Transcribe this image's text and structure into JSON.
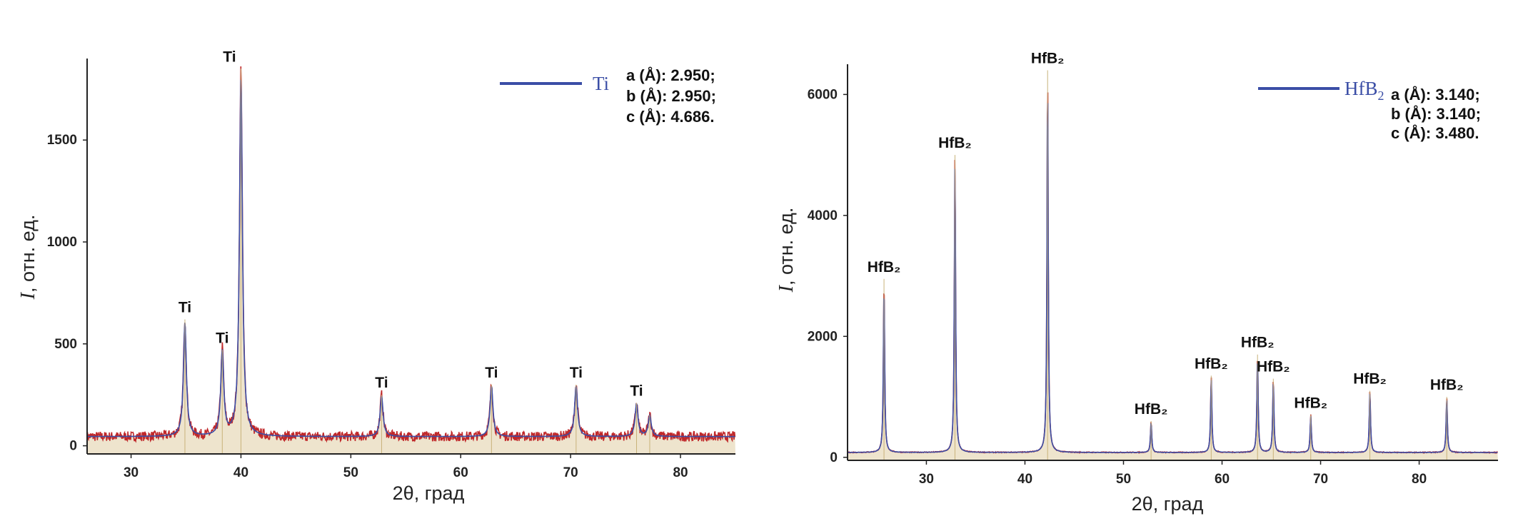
{
  "chart_data": [
    {
      "type": "line",
      "xlabel": "2θ, град",
      "ylabel": "I, отн. ед.",
      "ylabel_italic": "I",
      "ylabel_rest": ", отн. ед.",
      "xlim": [
        26,
        85
      ],
      "ylim": [
        -40,
        1900
      ],
      "xticks": [
        30,
        40,
        50,
        60,
        70,
        80
      ],
      "yticks": [
        0,
        500,
        1000,
        1500
      ],
      "background": 45,
      "legend": {
        "name": "Ti",
        "color": "#3b4ea6",
        "position": "top-right"
      },
      "lattice": [
        "a (Å): 2.950;",
        "b (Å): 2.950;",
        "c (Å): 4.686."
      ],
      "series": [
        {
          "name": "Ti",
          "color": "#3b4ea6"
        }
      ],
      "peaks": [
        {
          "x": 34.9,
          "y": 620,
          "label": "Ti"
        },
        {
          "x": 38.3,
          "y": 470,
          "label": "Ti"
        },
        {
          "x": 40.0,
          "y": 1850,
          "label": "Ti"
        },
        {
          "x": 52.8,
          "y": 250,
          "label": "Ti"
        },
        {
          "x": 62.8,
          "y": 300,
          "label": "Ti"
        },
        {
          "x": 70.5,
          "y": 300,
          "label": "Ti"
        },
        {
          "x": 76.0,
          "y": 210,
          "label": "Ti"
        },
        {
          "x": 77.2,
          "y": 150,
          "label": ""
        }
      ]
    },
    {
      "type": "line",
      "xlabel": "2θ, град",
      "ylabel": "I, отн. ед.",
      "ylabel_italic": "I",
      "ylabel_rest": ", отн. ед.",
      "xlim": [
        22,
        88
      ],
      "ylim": [
        -50,
        6500
      ],
      "xticks": [
        30,
        40,
        50,
        60,
        70,
        80
      ],
      "yticks": [
        0,
        2000,
        4000,
        6000
      ],
      "background": 80,
      "legend": {
        "name": "HfB",
        "subscript": "2",
        "color": "#3b4ea6",
        "position": "top-right"
      },
      "lattice": [
        "a (Å): 3.140;",
        "b (Å): 3.140;",
        "c (Å): 3.480."
      ],
      "series": [
        {
          "name": "HfB2",
          "color": "#3b4ea6"
        }
      ],
      "peaks": [
        {
          "x": 25.7,
          "y": 2950,
          "label": "HfB₂"
        },
        {
          "x": 32.9,
          "y": 5000,
          "label": "HfB₂"
        },
        {
          "x": 42.3,
          "y": 6400,
          "label": "HfB₂"
        },
        {
          "x": 52.8,
          "y": 600,
          "label": "HfB₂"
        },
        {
          "x": 58.9,
          "y": 1350,
          "label": "HfB₂"
        },
        {
          "x": 63.6,
          "y": 1700,
          "label": "HfB₂"
        },
        {
          "x": 65.2,
          "y": 1300,
          "label": "HfB₂"
        },
        {
          "x": 69.0,
          "y": 700,
          "label": "HfB₂"
        },
        {
          "x": 75.0,
          "y": 1100,
          "label": "HfB₂"
        },
        {
          "x": 82.8,
          "y": 1000,
          "label": "HfB₂"
        }
      ]
    }
  ]
}
